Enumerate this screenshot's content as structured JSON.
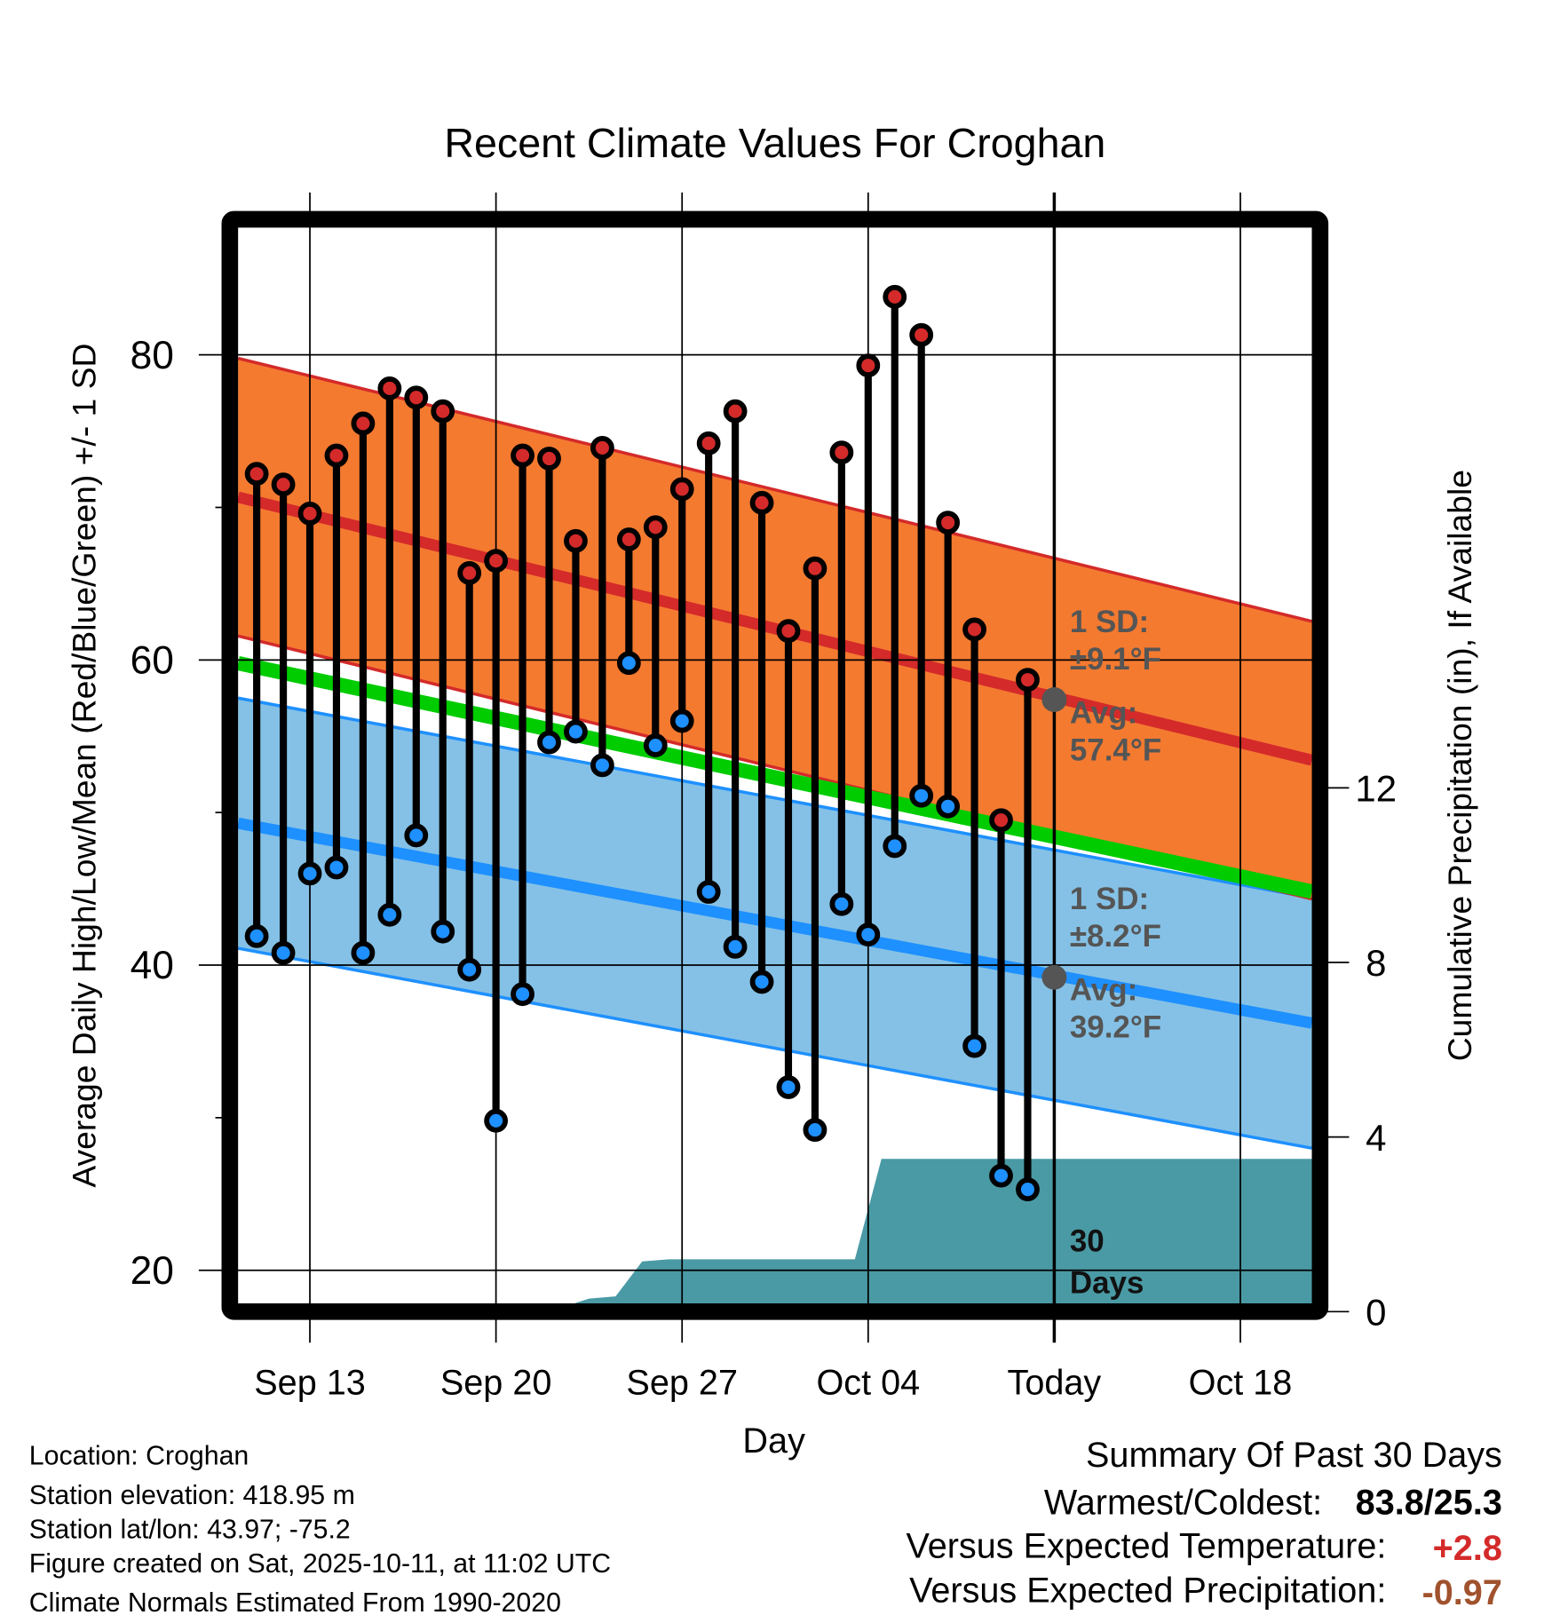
{
  "chart_data": {
    "type": "line",
    "title": "Recent Climate Values For Croghan",
    "xlabel": "Day",
    "ylabel": "Average Daily High/Low/Mean (Red/Blue/Green) +/- 1 SD",
    "y2label": "Cumulative Precipitation (in), If Available",
    "ylim": [
      18,
      89
    ],
    "y2lim": [
      0,
      25
    ],
    "yticks": [
      20,
      40,
      60,
      80
    ],
    "y2ticks": [
      0,
      4,
      8,
      12
    ],
    "xtick_labels": [
      "Sep 13",
      "Sep 20",
      "Sep 27",
      "Oct 04",
      "Today",
      "Oct 18"
    ],
    "xtick_day_index": [
      2,
      9,
      16,
      23,
      30,
      37
    ],
    "grid": true,
    "days": [
      "Sep 11",
      "Sep 12",
      "Sep 13",
      "Sep 14",
      "Sep 15",
      "Sep 16",
      "Sep 17",
      "Sep 18",
      "Sep 19",
      "Sep 20",
      "Sep 21",
      "Sep 22",
      "Sep 23",
      "Sep 24",
      "Sep 25",
      "Sep 26",
      "Sep 27",
      "Sep 28",
      "Sep 29",
      "Sep 30",
      "Oct 01",
      "Oct 02",
      "Oct 03",
      "Oct 04",
      "Oct 05",
      "Oct 06",
      "Oct 07",
      "Oct 08",
      "Oct 09",
      "Oct 10"
    ],
    "series": [
      {
        "name": "Daily High",
        "color": "#d42a2a",
        "values": [
          72.2,
          71.5,
          69.6,
          73.4,
          75.5,
          77.8,
          77.2,
          76.3,
          65.7,
          66.5,
          73.4,
          73.2,
          67.8,
          73.9,
          67.9,
          68.7,
          71.2,
          74.2,
          76.3,
          70.3,
          61.9,
          66.0,
          73.6,
          79.3,
          83.8,
          81.3,
          69.0,
          62.0,
          49.5,
          58.7
        ]
      },
      {
        "name": "Daily Low",
        "color": "#1e90ff",
        "values": [
          41.9,
          40.8,
          46.0,
          46.4,
          40.8,
          43.3,
          48.5,
          42.2,
          39.7,
          29.8,
          38.1,
          54.6,
          55.3,
          53.1,
          59.8,
          54.4,
          56.0,
          44.8,
          41.2,
          38.9,
          32.0,
          29.2,
          44.0,
          42.0,
          47.8,
          51.1,
          50.4,
          34.7,
          26.2,
          25.3
        ]
      }
    ],
    "normals": {
      "day_range": [
        -1,
        40
      ],
      "high_mean": [
        70.8,
        53.3
      ],
      "high_sd": 9.1,
      "low_mean": [
        49.4,
        36.1
      ],
      "low_sd": 8.2,
      "mean": [
        59.9,
        44.7
      ]
    },
    "precipitation": {
      "name": "Cumulative Precipitation",
      "color": "#4a9aa5",
      "points": [
        [
          -1,
          0
        ],
        [
          11.5,
          0
        ],
        [
          12,
          0.2
        ],
        [
          12.5,
          0.3
        ],
        [
          13.5,
          0.35
        ],
        [
          14.5,
          1.15
        ],
        [
          15.5,
          1.2
        ],
        [
          22.5,
          1.2
        ],
        [
          23.5,
          3.5
        ],
        [
          40,
          3.5
        ]
      ]
    },
    "annotations": {
      "high_sd": "1 SD:",
      "high_sd_val": "±9.1°F",
      "high_avg": "Avg:",
      "high_avg_val": "57.4°F",
      "high_avg_num": 57.4,
      "low_sd": "1 SD:",
      "low_sd_val": "±8.2°F",
      "low_avg": "Avg:",
      "low_avg_val": "39.2°F",
      "low_avg_num": 39.2,
      "days_30_a": "30",
      "days_30_b": "Days"
    }
  },
  "info": {
    "location": "Location: Croghan",
    "elevation": "Station elevation: 418.95 m",
    "latlon": "Station lat/lon: 43.97; -75.2",
    "created": "Figure created on Sat, 2025-10-11, at 11:02 UTC",
    "normals": "Climate Normals Estimated From 1990-2020"
  },
  "summary": {
    "title": "Summary Of Past 30 Days",
    "warm_label": "Warmest/Coldest:",
    "warm_value": "83.8/25.3",
    "temp_label": "Versus Expected Temperature:",
    "temp_value": "+2.8",
    "precip_label": "Versus Expected Precipitation:",
    "precip_value": "-0.97",
    "temp_color": "#d42a2a",
    "precip_color": "#a0522d"
  }
}
